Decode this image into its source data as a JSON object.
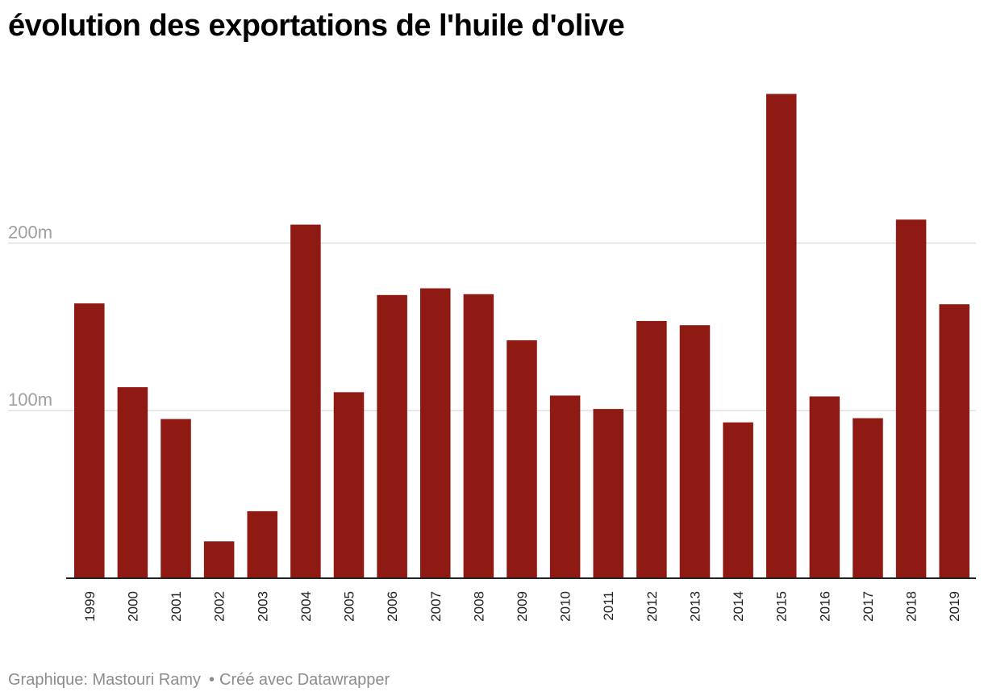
{
  "chart_data": {
    "type": "bar",
    "title": "évolution des exportations de l'huile d'olive",
    "xlabel": "",
    "ylabel": "",
    "categories": [
      "1999",
      "2000",
      "2001",
      "2002",
      "2003",
      "2004",
      "2005",
      "2006",
      "2007",
      "2008",
      "2009",
      "2010",
      "2011",
      "2012",
      "2013",
      "2014",
      "2015",
      "2016",
      "2017",
      "2018",
      "2019"
    ],
    "values": [
      164,
      114,
      95,
      22,
      40,
      211,
      111,
      169,
      173,
      169.5,
      142,
      109,
      101,
      153.5,
      151,
      93,
      289,
      108.5,
      95.5,
      214,
      163.5
    ],
    "ylim": [
      0,
      300
    ],
    "yticks": [
      100,
      200
    ],
    "ytick_labels": [
      "100m",
      "200m"
    ],
    "grid": true,
    "bar_color": "#8f1a13",
    "grid_color": "#e0e0e0",
    "axis_color": "#222222"
  },
  "footer": {
    "source": "Graphique: Mastouri Ramy",
    "separator": "•",
    "credit": "Créé avec Datawrapper"
  }
}
